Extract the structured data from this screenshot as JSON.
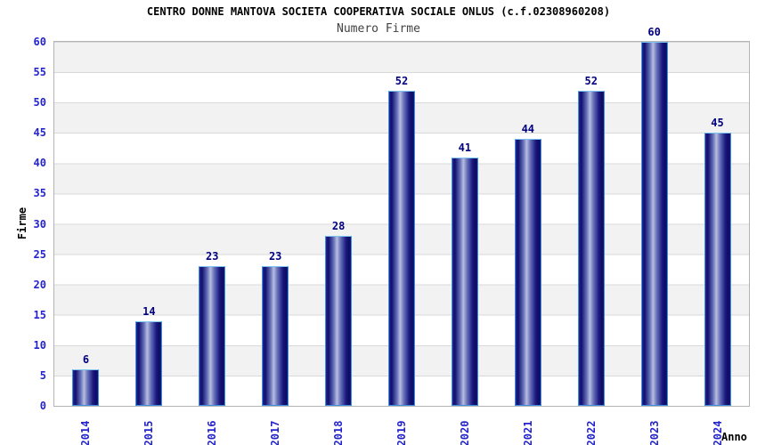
{
  "header": {
    "title": "CENTRO DONNE MANTOVA SOCIETA COOPERATIVA SOCIALE ONLUS (c.f.02308960208)",
    "subtitle": "Numero Firme"
  },
  "chart_data": {
    "type": "bar",
    "title": "CENTRO DONNE MANTOVA SOCIETA COOPERATIVA SOCIALE ONLUS (c.f.02308960208)",
    "subtitle": "Numero Firme",
    "categories": [
      "2014",
      "2015",
      "2016",
      "2017",
      "2018",
      "2019",
      "2020",
      "2021",
      "2022",
      "2023",
      "2024"
    ],
    "values": [
      6,
      14,
      23,
      23,
      28,
      52,
      41,
      44,
      52,
      60,
      45
    ],
    "xlabel": "Anno",
    "ylabel": "Firme",
    "ylim": [
      0,
      60
    ],
    "ytick_step": 5,
    "yticks": [
      0,
      5,
      10,
      15,
      20,
      25,
      30,
      35,
      40,
      45,
      50,
      55,
      60
    ],
    "grid": true,
    "legend_visible": false,
    "band_colors": [
      "#ffffff",
      "#f2f2f2"
    ],
    "colors": {
      "bar_dark": "#10106e",
      "bar_light": "#b8bede",
      "bar_edge": "#3f8fe0",
      "axis_tick_text": "#2424cc",
      "value_label_text": "#00007f",
      "title_text": "#000000",
      "subtitle_text": "#424242",
      "plot_border": "#b4b4b4",
      "gridline": "#d9d9d9"
    }
  }
}
